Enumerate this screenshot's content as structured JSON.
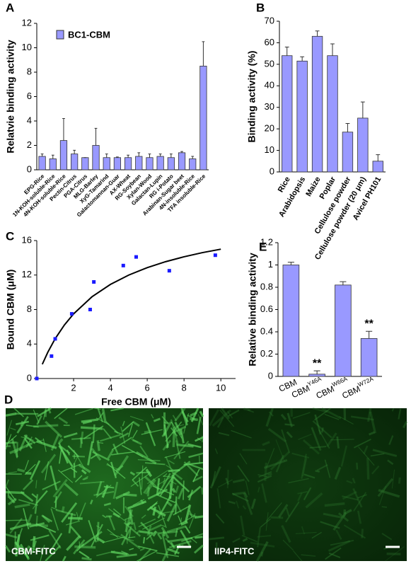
{
  "chart_data": [
    {
      "type": "bar",
      "panel_label": "A",
      "y_label": "Relatvie binding activity",
      "categories": [
        "EPG-Rice",
        "1N-KOH-soluble-Rice",
        "4N-KOH-soluble-Rice",
        "Pectin-Citrus",
        "PGA-Citrus",
        "MLG-Barley",
        "XyG-Tamarind",
        "Galactomannan-Guar",
        "AX-Wheat",
        "RG-Soybean",
        "Xylan-Wood",
        "Galactan-Lupin",
        "RG i-Potato",
        "Arabinan-Sugar beet",
        "4N-insoluble-Rice",
        "TFA insoluble-Rice"
      ],
      "series": [
        {
          "name": "BC1-CBM",
          "color": "#9999ff",
          "values": [
            1.1,
            0.9,
            2.4,
            1.3,
            1.0,
            2.0,
            1.0,
            1.0,
            1.0,
            1.1,
            1.0,
            1.1,
            1.0,
            1.4,
            0.9,
            8.5
          ],
          "errors": [
            0.2,
            0.3,
            1.8,
            0.3,
            0.0,
            1.4,
            0.3,
            0.05,
            0.2,
            0.3,
            0.3,
            0.2,
            0.3,
            0.1,
            0.2,
            2.0
          ]
        }
      ],
      "ylim": [
        0,
        12
      ],
      "yticks": [
        0,
        2,
        4,
        6,
        8,
        10,
        12
      ],
      "legend": "upper left"
    },
    {
      "type": "bar",
      "panel_label": "B",
      "y_label": "Binding activity (%)",
      "categories": [
        "Rice",
        "Arabidopsis",
        "Maize",
        "Poplar",
        "Cellulose powder",
        "Cellulose powder (20 μm)",
        "Avicel PH101"
      ],
      "values": [
        54,
        51.5,
        63,
        54,
        18.5,
        25,
        5
      ],
      "errors": [
        4,
        2,
        2.5,
        5.5,
        4,
        7.5,
        3
      ],
      "color": "#9999ff",
      "ylim": [
        0,
        70
      ],
      "yticks": [
        0,
        10,
        20,
        30,
        40,
        50,
        60,
        70
      ]
    },
    {
      "type": "scatter",
      "panel_label": "C",
      "x_label": "Free CBM (μM)",
      "y_label": "Bound CBM (μM)",
      "x": [
        0,
        0.8,
        1.0,
        1.9,
        2.9,
        3.1,
        4.7,
        5.4,
        7.2,
        9.7
      ],
      "values": [
        0,
        2.6,
        4.6,
        7.5,
        8.0,
        11.2,
        13.1,
        14.1,
        12.5,
        14.3
      ],
      "color": "#1a1aff",
      "curve": {
        "x": [
          0.3,
          0.6,
          1,
          1.5,
          2,
          3,
          4,
          5,
          6,
          7,
          8,
          9,
          10
        ],
        "y": [
          1.65,
          3.05,
          4.62,
          6.21,
          7.5,
          9.48,
          10.91,
          12.0,
          12.86,
          13.55,
          14.12,
          14.6,
          15.0
        ],
        "color": "#000000"
      },
      "xlim": [
        0,
        10.8
      ],
      "xticks": [
        2,
        4,
        6,
        8,
        10
      ],
      "ylim": [
        0,
        16
      ],
      "yticks": [
        0,
        4,
        8,
        12,
        16
      ]
    },
    {
      "type": "bar",
      "panel_label": "E",
      "y_label": "Relative binding activity",
      "categories": [
        "CBM",
        "CBM",
        "CBM",
        "CBM"
      ],
      "category_superscripts": [
        null,
        "Y46A",
        "W66A",
        "W72A"
      ],
      "values": [
        1.0,
        0.02,
        0.82,
        0.34
      ],
      "errors": [
        0.025,
        0.03,
        0.03,
        0.065
      ],
      "value_annotations": [
        null,
        "**",
        null,
        "**"
      ],
      "color": "#9999ff",
      "ylim": [
        0,
        1.2
      ],
      "yticks": [
        0,
        0.2,
        0.4,
        0.6,
        0.8,
        1,
        1.2
      ]
    }
  ],
  "micrographs": {
    "panel_label": "D",
    "captions": [
      "CBM-FITC",
      "IIP4-FITC"
    ]
  }
}
